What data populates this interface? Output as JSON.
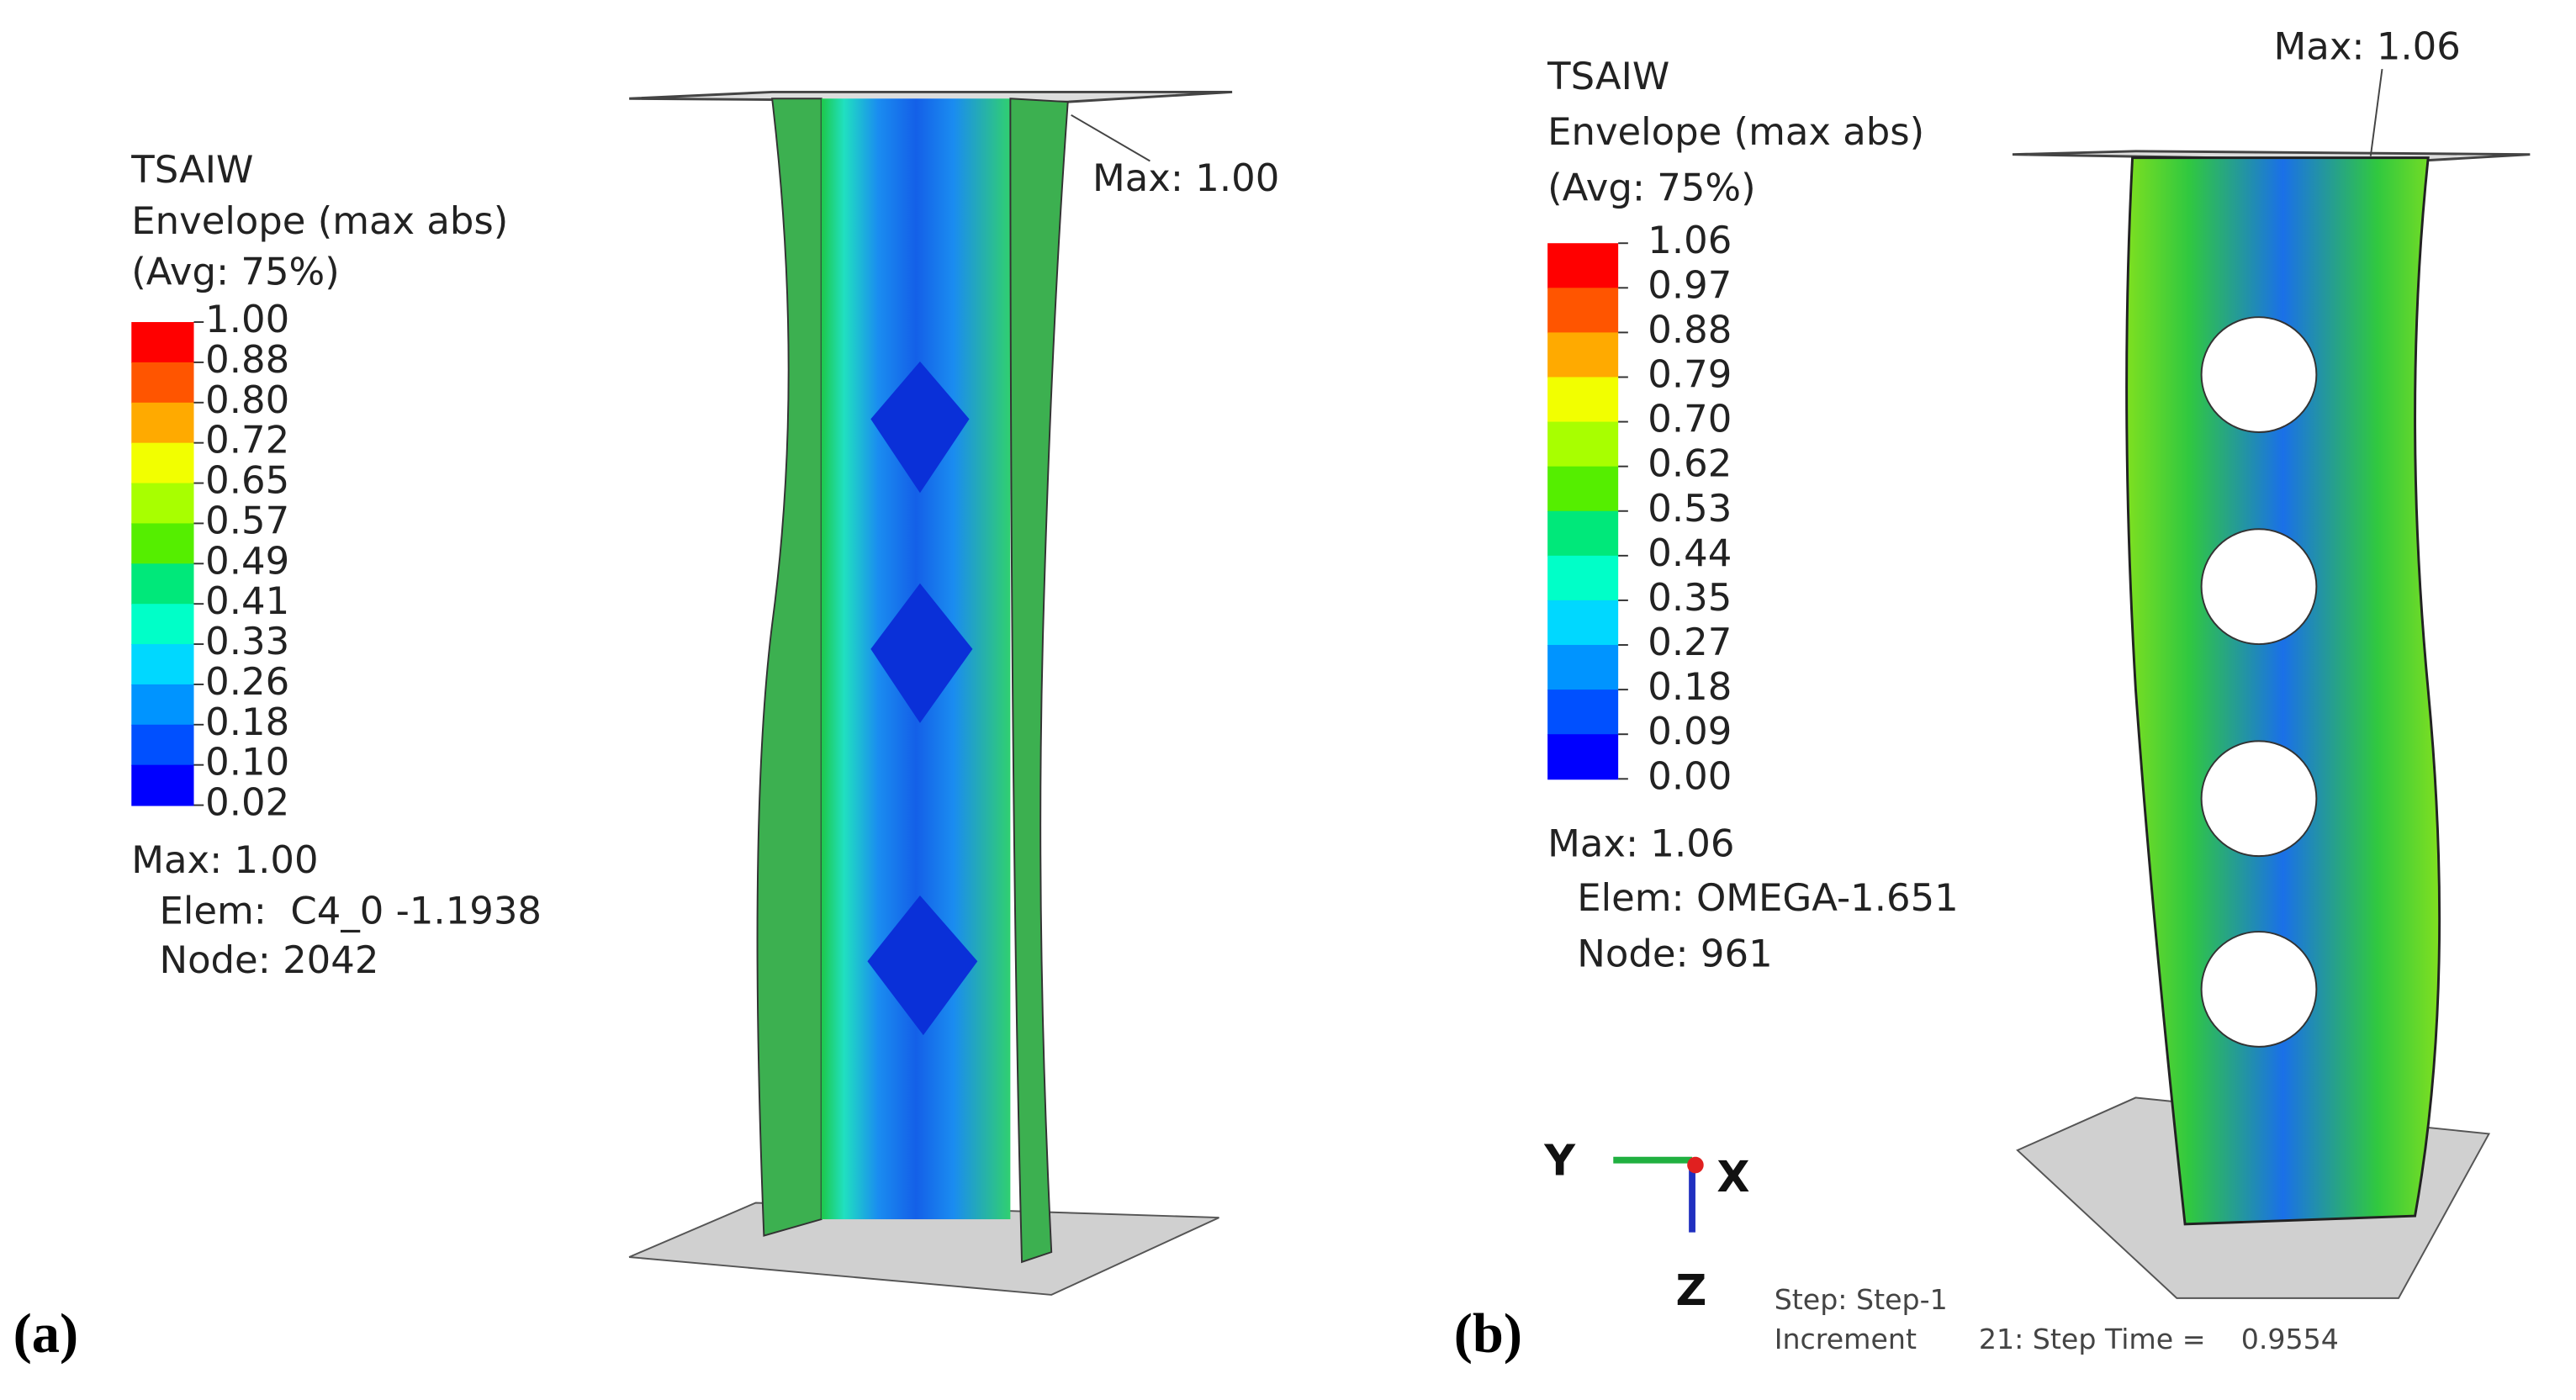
{
  "panels": [
    {
      "label": "(a)",
      "legend": {
        "title": "TSAIW",
        "lines": [
          "Envelope (max abs)",
          "(Avg: 75%)"
        ],
        "levels": [
          "1.00",
          "0.88",
          "0.80",
          "0.72",
          "0.65",
          "0.57",
          "0.49",
          "0.41",
          "0.33",
          "0.26",
          "0.18",
          "0.10",
          "0.02"
        ]
      },
      "max_info": [
        "Max: 1.00",
        "Elem:  C4_0 -1.1938",
        "Node: 2042"
      ],
      "max_annotation": "Max: 1.00"
    },
    {
      "label": "(b)",
      "legend": {
        "title": "TSAIW",
        "lines": [
          "Envelope (max abs)",
          "(Avg: 75%)"
        ],
        "levels": [
          "1.06",
          "0.97",
          "0.88",
          "0.79",
          "0.70",
          "0.62",
          "0.53",
          "0.44",
          "0.35",
          "0.27",
          "0.18",
          "0.09",
          "0.00"
        ]
      },
      "max_info": [
        "Max: 1.06",
        "Elem: OMEGA-1.651",
        "Node: 961"
      ],
      "max_annotation": "Max: 1.06",
      "triad": [
        "Y",
        "X",
        "Z"
      ],
      "step_info": [
        "Step: Step-1",
        "Increment       21: Step Time =    0.9554"
      ]
    }
  ]
}
